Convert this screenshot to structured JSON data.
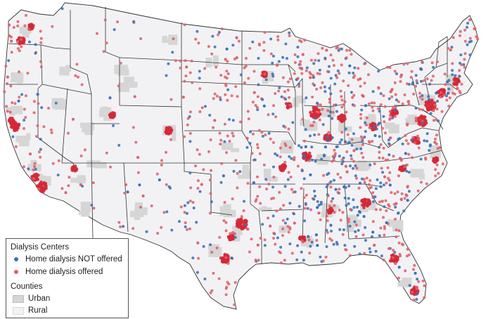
{
  "legend": {
    "centers_title": "Dialysis Centers",
    "not_offered_label": "Home dialysis NOT offered",
    "offered_label": "Home dialysis offered",
    "counties_title": "Counties",
    "urban_label": "Urban",
    "rural_label": "Rural"
  },
  "colors": {
    "not_offered": "#3a6fb8",
    "offered": "#e06068",
    "offered_dense": "#d62836",
    "urban": "#d6d6d6",
    "rural": "#f2f2f5",
    "state_border": "#333333"
  },
  "map": {
    "region": "contiguous-united-states",
    "dot_density": "high-in-east-and-coasts"
  }
}
